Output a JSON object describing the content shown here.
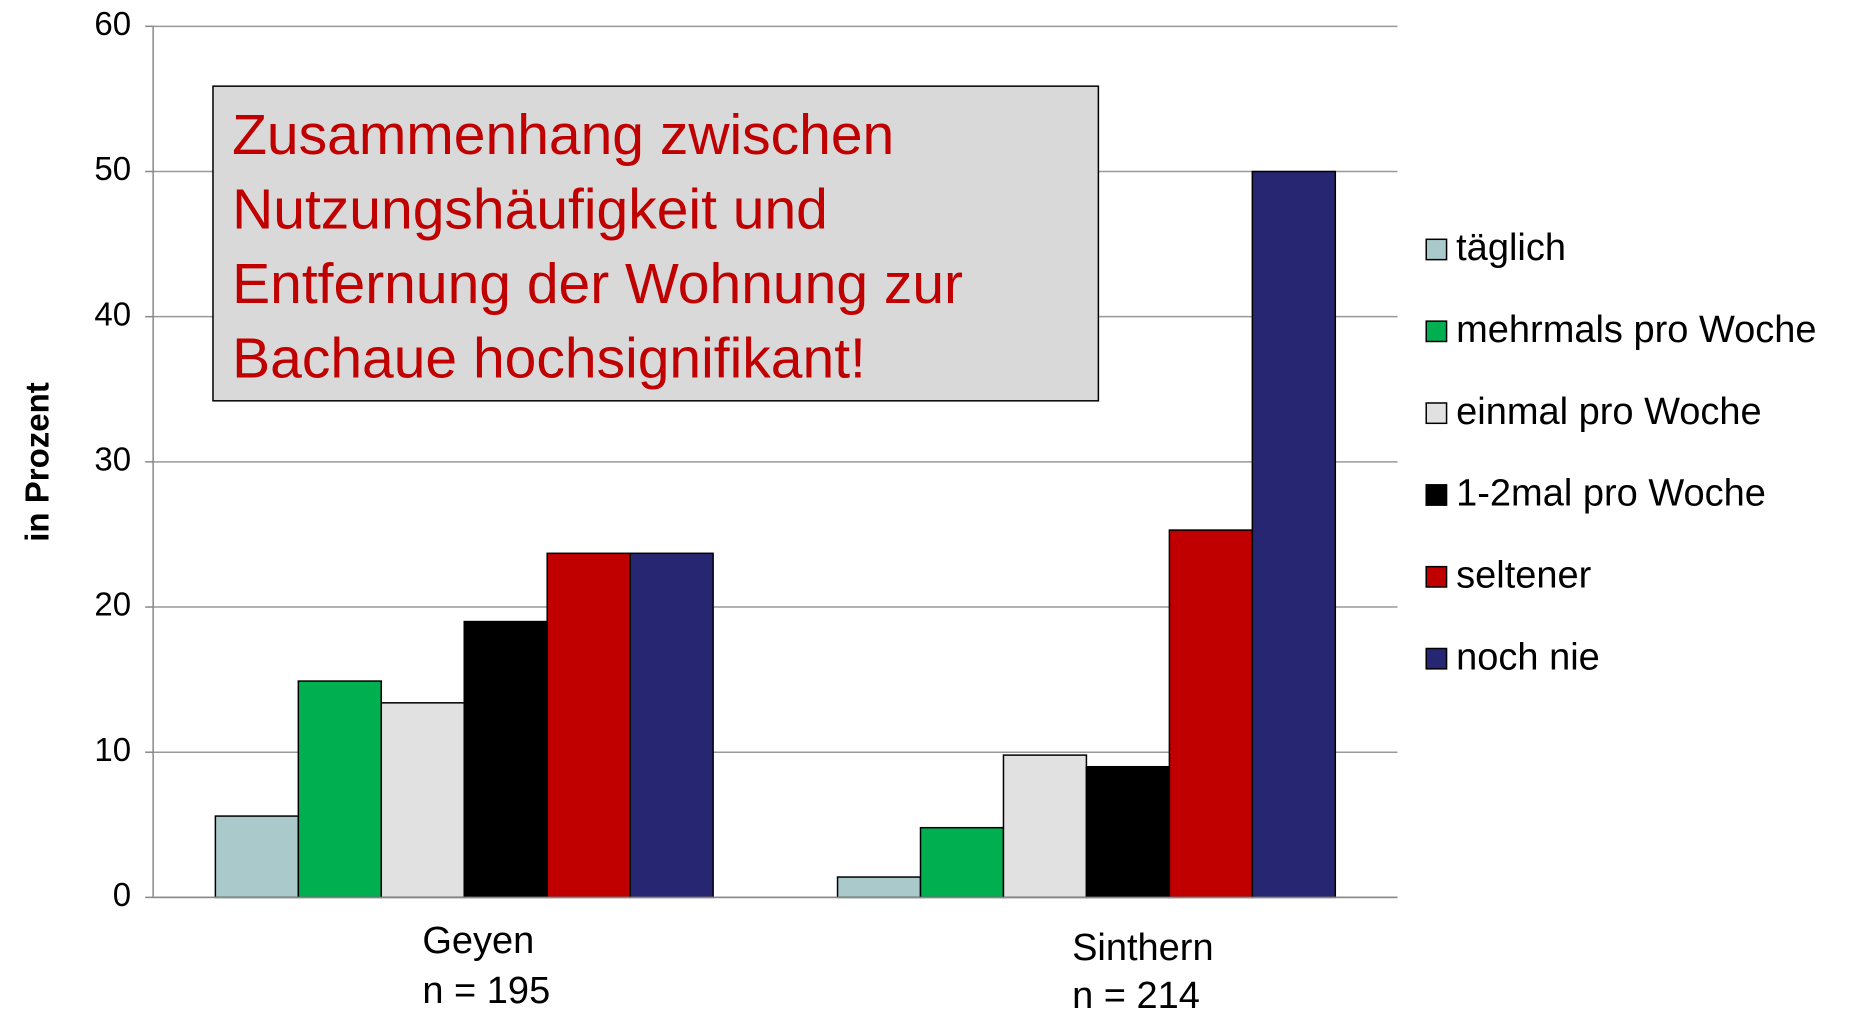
{
  "chart_data": {
    "type": "bar",
    "y_label": "in Prozent",
    "categories": [
      "Geyen",
      "Sinthern"
    ],
    "category_subtitles": [
      "n = 195",
      "n = 214"
    ],
    "series": [
      {
        "name": "täglich",
        "color": "#a9c9ca",
        "values": [
          5.6,
          1.4
        ]
      },
      {
        "name": "mehrmals pro Woche",
        "color": "#00b050",
        "values": [
          14.9,
          4.8
        ]
      },
      {
        "name": "einmal pro Woche",
        "color": "#e1e1e1",
        "values": [
          13.4,
          9.8
        ]
      },
      {
        "name": "1-2mal pro Woche",
        "color": "#000000",
        "values": [
          19.0,
          9.0
        ]
      },
      {
        "name": "seltener",
        "color": "#c00000",
        "values": [
          23.7,
          25.3
        ]
      },
      {
        "name": "noch nie",
        "color": "#262673",
        "values": [
          23.7,
          50.0
        ]
      }
    ],
    "ylim": [
      0,
      60
    ],
    "yticks": [
      0,
      10,
      20,
      30,
      40,
      50,
      60
    ],
    "grid": true,
    "legend": "right",
    "annotation": [
      "Zusammenhang zwischen",
      "Nutzungshäufigkeit und",
      "Entfernung der Wohnung zur",
      "Bachaue hochsignifikant!"
    ]
  }
}
